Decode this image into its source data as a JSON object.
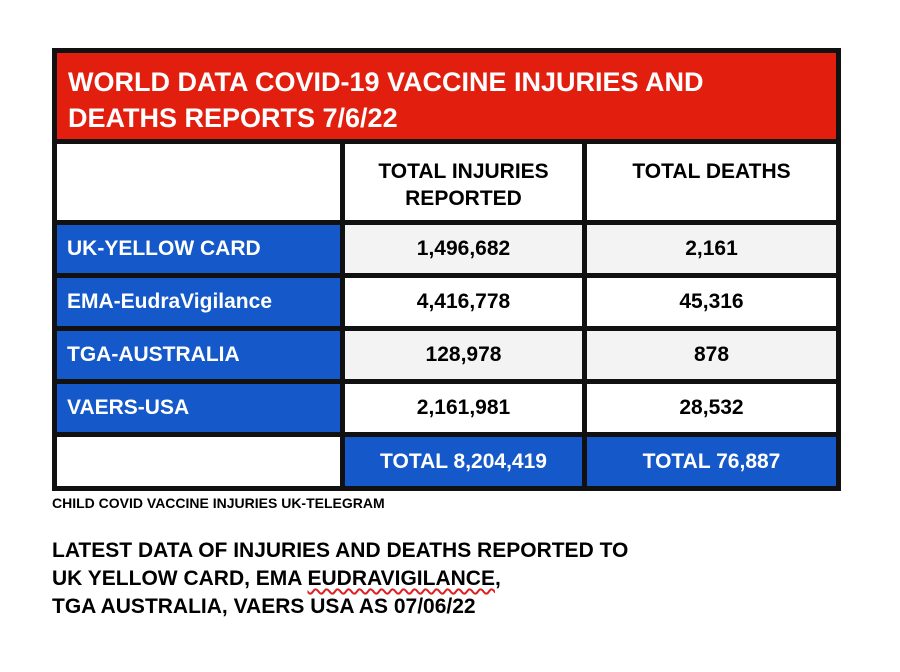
{
  "title": {
    "line1": "WORLD DATA COVID-19 VACCINE INJURIES AND",
    "line2": "DEATHS REPORTS 7/6/22"
  },
  "table": {
    "headers": {
      "injuries_line1": "TOTAL INJURIES",
      "injuries_line2": "REPORTED",
      "deaths": "TOTAL DEATHS"
    },
    "rows": [
      {
        "label": "UK-YELLOW CARD",
        "injuries": "1,496,682",
        "deaths": "2,161"
      },
      {
        "label": "EMA-EudraVigilance",
        "injuries": "4,416,778",
        "deaths": "45,316"
      },
      {
        "label": "TGA-AUSTRALIA",
        "injuries": "128,978",
        "deaths": "878"
      },
      {
        "label": "VAERS-USA",
        "injuries": "2,161,981",
        "deaths": "28,532"
      }
    ],
    "totals": {
      "injuries": "TOTAL 8,204,419",
      "deaths": "TOTAL 76,887"
    }
  },
  "footer": {
    "source": "CHILD COVID VACCINE INJURIES UK-TELEGRAM",
    "line1": "LATEST DATA OF INJURIES AND DEATHS REPORTED TO",
    "line2_prefix": "UK YELLOW CARD, EMA ",
    "line2_flagged": "EUDRAVIGILANCE",
    "line2_suffix": ",",
    "line3": "TGA AUSTRALIA, VAERS USA AS 07/06/22"
  },
  "colors": {
    "title_background": "#e21f0f",
    "label_background": "#1458c9",
    "border": "#111111"
  }
}
